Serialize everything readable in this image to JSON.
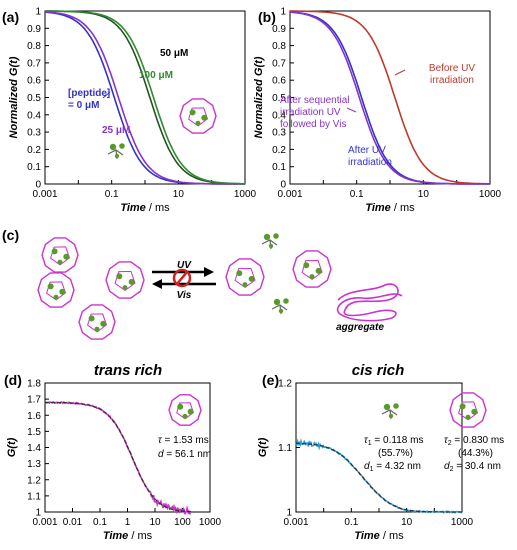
{
  "colors": {
    "blue": "#3333cc",
    "purple": "#8833cc",
    "green": "#2e8b2e",
    "darkred": "#c0392b",
    "magenta": "#cc33cc",
    "cyan": "#29a3d6",
    "grey_green": "#5a9a2a",
    "dashed": "#333333"
  },
  "panel_labels": {
    "a": "(a)",
    "b": "(b)",
    "c": "(c)",
    "d": "(d)",
    "e": "(e)"
  },
  "panel_c": {
    "uv_label": "UV",
    "vis_label": "Vis",
    "aggregate_label": "aggregate"
  },
  "chart_data": [
    {
      "id": "a",
      "type": "line",
      "xlabel": "Time",
      "xunit": " / ms",
      "ylabel": "Normalized G(t)",
      "xscale": "log",
      "xlim": [
        0.001,
        1000
      ],
      "ylim": [
        0,
        1
      ],
      "xticks": [
        "0.001",
        "0.1",
        "10",
        "1000"
      ],
      "yticks": [
        "0",
        "0.1",
        "0.2",
        "0.3",
        "0.4",
        "0.5",
        "0.6",
        "0.7",
        "0.8",
        "0.9",
        "1"
      ],
      "series": [
        {
          "name": "[peptide] = 0 μM",
          "tau": 0.12,
          "color": "#3333cc"
        },
        {
          "name": "25 μM",
          "tau": 0.16,
          "color": "#8833cc"
        },
        {
          "name": "50 μM",
          "tau": 1.4,
          "color": "#225522"
        },
        {
          "name": "100 μM",
          "tau": 1.8,
          "color": "#2e8b2e"
        }
      ],
      "annotations": [
        {
          "text": "50 μM",
          "color": "#000000"
        },
        {
          "text": "100 μM",
          "color": "#2e8b2e"
        },
        {
          "text": "[peptide]",
          "color": "#3333cc"
        },
        {
          "text": "= 0 μM",
          "color": "#3333cc"
        },
        {
          "text": "25 μM",
          "color": "#8833cc"
        }
      ]
    },
    {
      "id": "b",
      "type": "line",
      "xlabel": "Time",
      "xunit": " / ms",
      "ylabel": "Normalized G(t)",
      "xscale": "log",
      "xlim": [
        0.001,
        1000
      ],
      "ylim": [
        0,
        1
      ],
      "xticks": [
        "0.001",
        "0.1",
        "10",
        "1000"
      ],
      "yticks": [
        "0",
        "0.1",
        "0.2",
        "0.3",
        "0.4",
        "0.5",
        "0.6",
        "0.7",
        "0.8",
        "0.9",
        "1"
      ],
      "series": [
        {
          "name": "Before UV irradiation",
          "tau": 1.4,
          "color": "#c0392b"
        },
        {
          "name": "After UV irradiation",
          "tau": 0.14,
          "color": "#3333cc"
        },
        {
          "name": "After sequential irradiation UV followed by Vis",
          "tau": 0.12,
          "color": "#8833cc"
        }
      ],
      "annotations": [
        {
          "text": "Before UV",
          "color": "#c0392b"
        },
        {
          "text": "irradiation",
          "color": "#c0392b"
        },
        {
          "text": "After sequential",
          "color": "#8833cc"
        },
        {
          "text": "irradiation UV",
          "color": "#8833cc"
        },
        {
          "text": "followed by Vis",
          "color": "#8833cc"
        },
        {
          "text": "After UV",
          "color": "#3333cc"
        },
        {
          "text": "irradiation",
          "color": "#3333cc"
        }
      ]
    },
    {
      "id": "d",
      "type": "line",
      "title": "trans rich",
      "xlabel": "Time",
      "xunit": " / ms",
      "ylabel": "G(t)",
      "xscale": "log",
      "xlim": [
        0.001,
        1000
      ],
      "ylim": [
        1,
        1.8
      ],
      "xticks": [
        "0.001",
        "0.01",
        "0.1",
        "1",
        "10",
        "100",
        "1000"
      ],
      "yticks": [
        "1",
        "1.1",
        "1.2",
        "1.3",
        "1.4",
        "1.5",
        "1.6",
        "1.7",
        "1.8"
      ],
      "fit": {
        "tau_ms": 1.53,
        "amp": 0.68
      },
      "series": [
        {
          "name": "data",
          "color": "#cc33cc"
        },
        {
          "name": "fit",
          "color": "#333333"
        }
      ],
      "annotations": [
        {
          "sym": "τ",
          "text": " = 1.53 ms"
        },
        {
          "sym": "d",
          "text": " = 56.1 nm"
        }
      ]
    },
    {
      "id": "e",
      "type": "line",
      "title": "cis rich",
      "xlabel": "Time",
      "xunit": " / ms",
      "ylabel": "G(t)",
      "xscale": "log",
      "xlim": [
        0.001,
        1000
      ],
      "ylim": [
        1,
        1.2
      ],
      "xticks": [
        "0.001",
        "0.1",
        "10",
        "1000"
      ],
      "yticks": [
        "1",
        "1.1",
        "1.2"
      ],
      "fit": {
        "tau1_ms": 0.118,
        "tau2_ms": 0.83,
        "f1": 0.557,
        "f2": 0.443,
        "amp": 0.107
      },
      "series": [
        {
          "name": "data",
          "color": "#29a3d6"
        },
        {
          "name": "fit",
          "color": "#333333"
        }
      ],
      "annotations": [
        {
          "sym": "τ",
          "sub": "1",
          "text": " = 0.118 ms"
        },
        {
          "text": "(55.7%)"
        },
        {
          "sym": "d",
          "sub": "1",
          "text": " = 4.32 nm"
        },
        {
          "sym": "τ",
          "sub": "2",
          "text": " = 0.830 ms"
        },
        {
          "text": "(44.3%)"
        },
        {
          "sym": "d",
          "sub": "2",
          "text": " = 30.4 nm"
        }
      ]
    }
  ]
}
